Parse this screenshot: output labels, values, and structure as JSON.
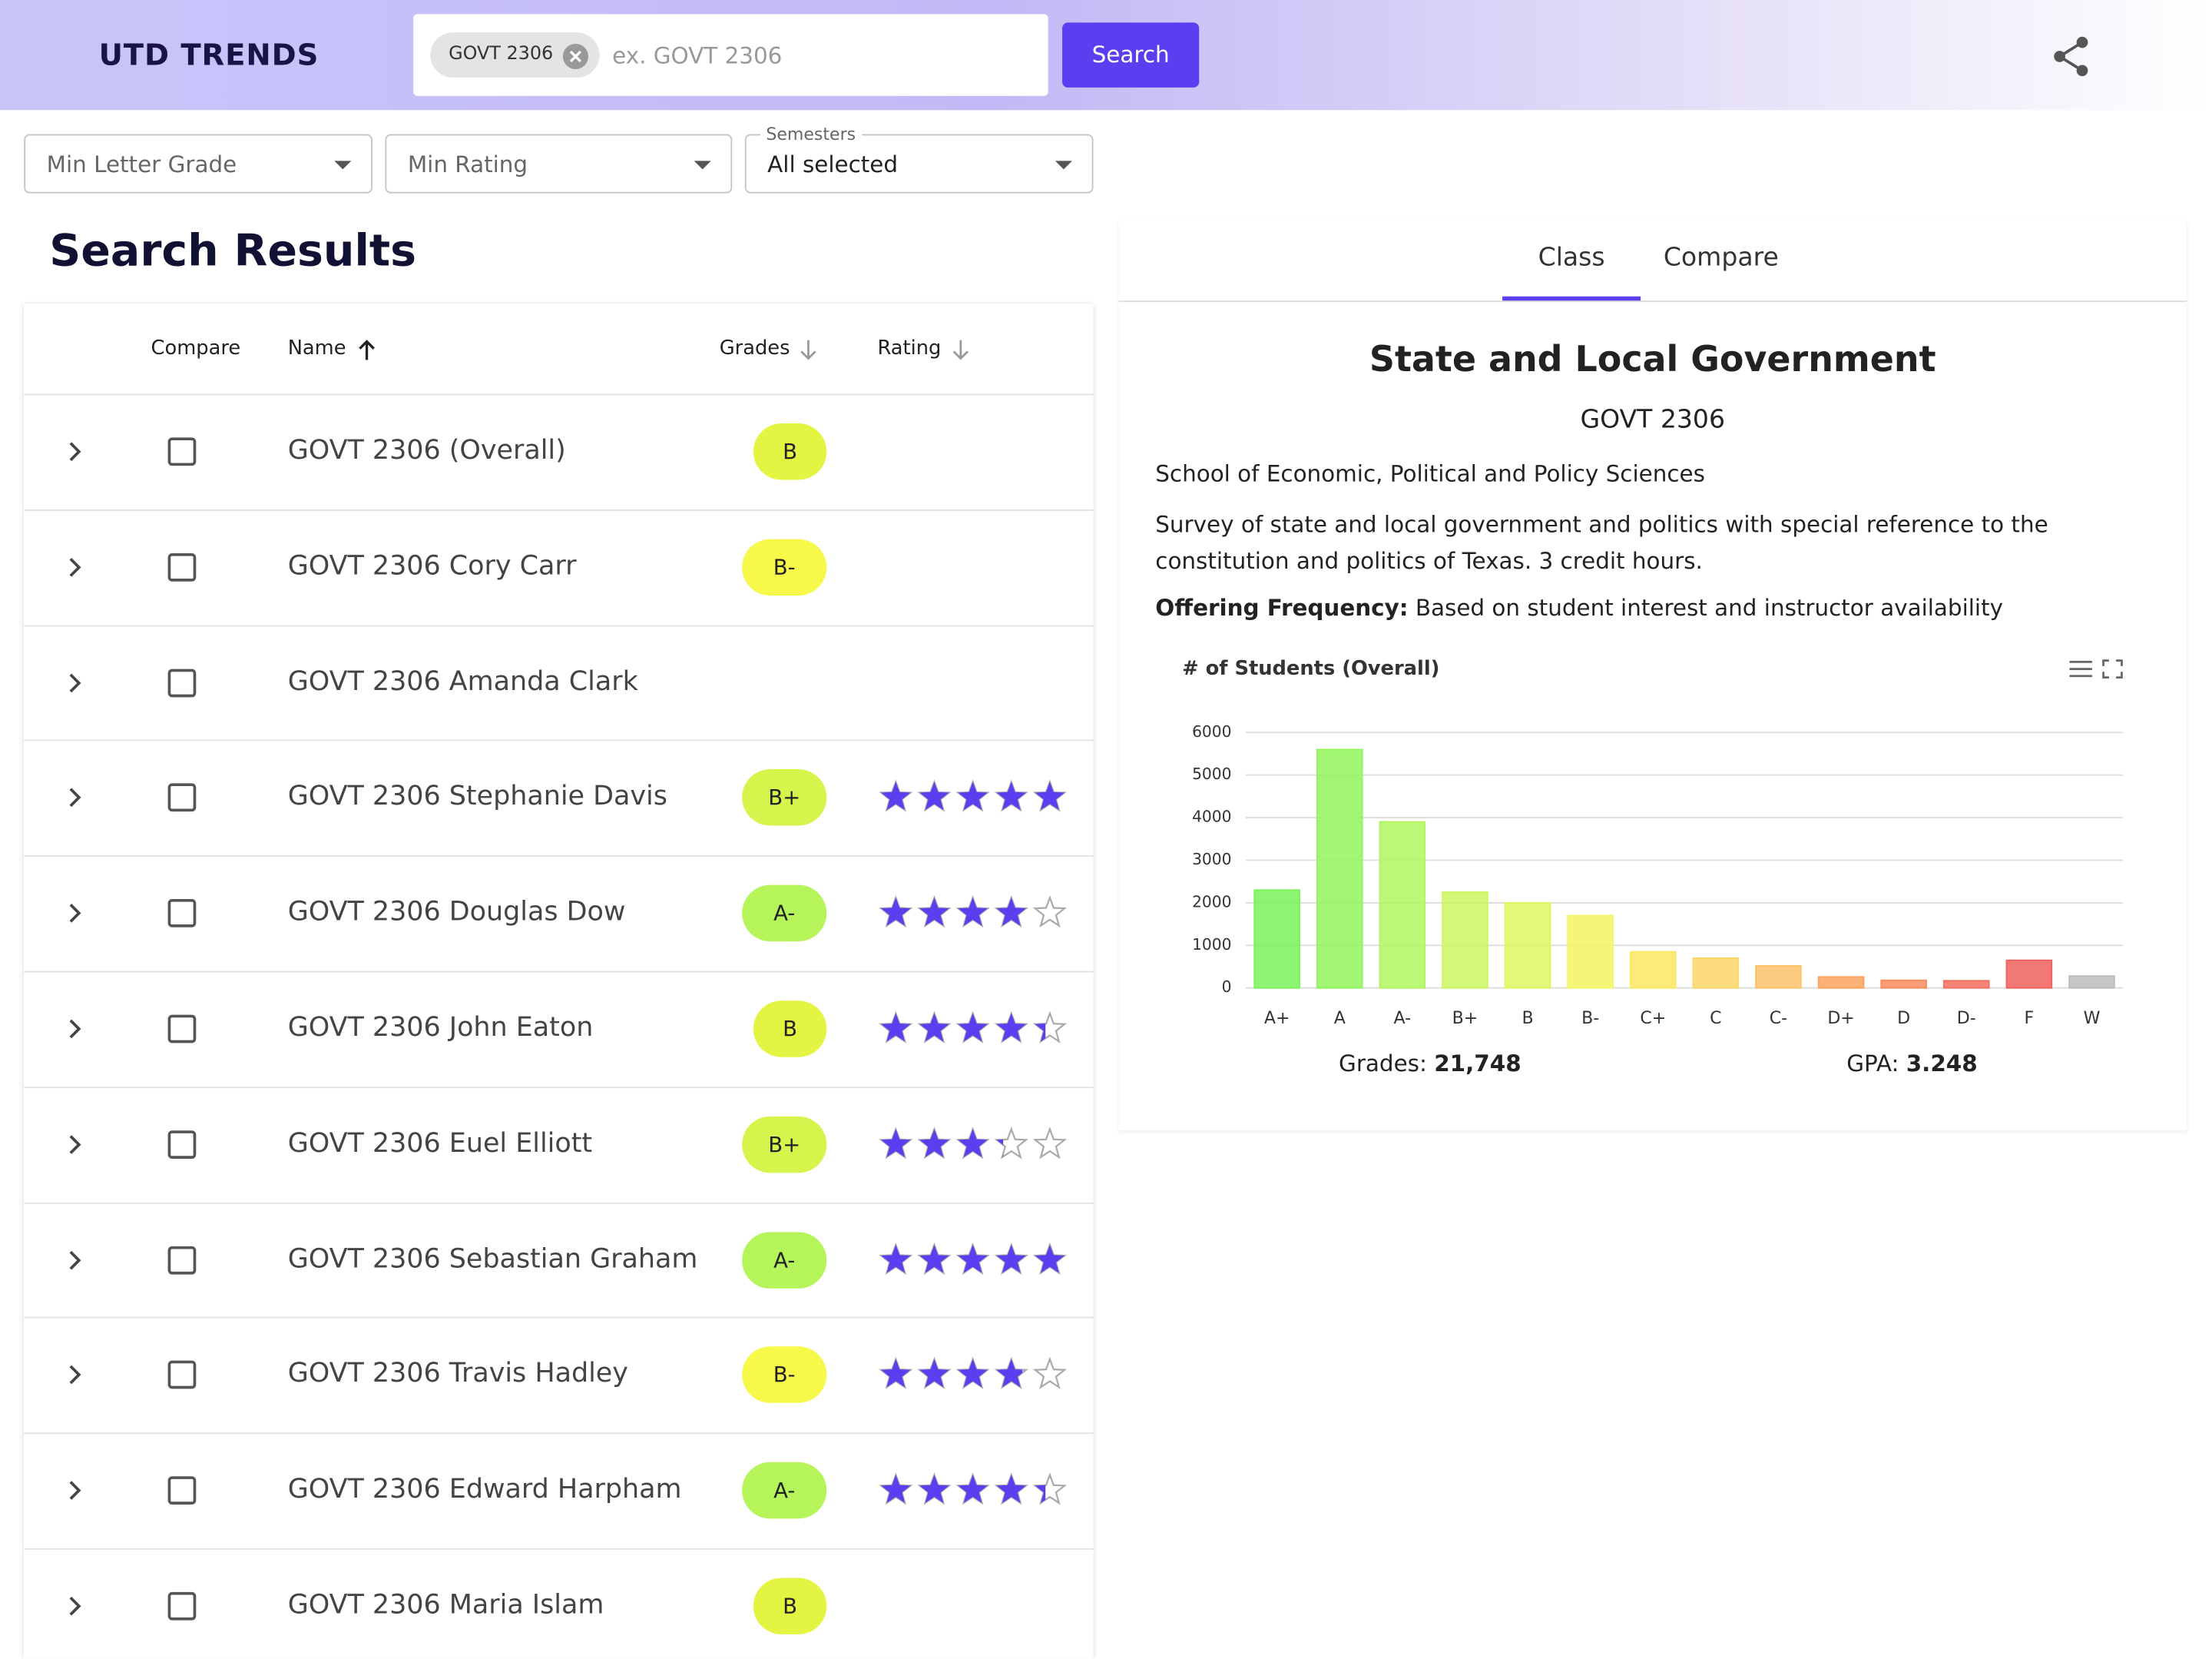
{
  "header": {
    "title": "UTD TRENDS",
    "chip": "GOVT 2306",
    "placeholder": "ex. GOVT 2306",
    "button": "Search"
  },
  "filters": {
    "min_grade": "Min Letter Grade",
    "min_rating": "Min Rating",
    "semesters_label": "Semesters",
    "semesters_value": "All selected"
  },
  "results": {
    "title": "Search Results",
    "columns": [
      "Compare",
      "Name",
      "Grades",
      "Rating"
    ],
    "rows": [
      {
        "name": "GOVT 2306 (Overall)",
        "grade": "B",
        "color": "#e3f542",
        "rating": null
      },
      {
        "name": "GOVT 2306 Cory Carr",
        "grade": "B-",
        "color": "#f6f84a",
        "rating": null
      },
      {
        "name": "GOVT 2306 Amanda Clark",
        "grade": null,
        "color": null,
        "rating": null
      },
      {
        "name": "GOVT 2306 Stephanie Davis",
        "grade": "B+",
        "color": "#d6f54c",
        "rating": 5
      },
      {
        "name": "GOVT 2306 Douglas Dow",
        "grade": "A-",
        "color": "#b6f55a",
        "rating": 4
      },
      {
        "name": "GOVT 2306 John Eaton",
        "grade": "B",
        "color": "#e3f542",
        "rating": 4.4
      },
      {
        "name": "GOVT 2306 Euel Elliott",
        "grade": "B+",
        "color": "#d6f54c",
        "rating": 3.3
      },
      {
        "name": "GOVT 2306 Sebastian Graham",
        "grade": "A-",
        "color": "#b6f55a",
        "rating": 5
      },
      {
        "name": "GOVT 2306 Travis Hadley",
        "grade": "B-",
        "color": "#f6f84a",
        "rating": 3.8
      },
      {
        "name": "GOVT 2306 Edward Harpham",
        "grade": "A-",
        "color": "#b6f55a",
        "rating": 4.4
      },
      {
        "name": "GOVT 2306 Maria Islam",
        "grade": "B",
        "color": "#e3f542",
        "rating": null
      }
    ]
  },
  "detail": {
    "tabs": [
      "Class",
      "Compare"
    ],
    "title": "State and Local Government",
    "code": "GOVT 2306",
    "school": "School of Economic, Political and Policy Sciences",
    "description": "Survey of state and local government and politics with special reference to the constitution and politics of Texas. 3 credit hours.",
    "frequency_label": "Offering Frequency:",
    "frequency": "Based on student interest and instructor availability",
    "grades_label": "Grades:",
    "grades": "21,748",
    "gpa_label": "GPA:",
    "gpa": "3.248"
  },
  "chart_data": {
    "type": "bar",
    "title": "# of Students (Overall)",
    "categories": [
      "A+",
      "A",
      "A-",
      "B+",
      "B",
      "B-",
      "C+",
      "C",
      "C-",
      "D+",
      "D",
      "D-",
      "F",
      "W"
    ],
    "values": [
      2300,
      5600,
      3900,
      2250,
      2000,
      1700,
      850,
      700,
      520,
      260,
      180,
      170,
      650,
      280
    ],
    "colors": [
      "#79f25a",
      "#92f45a",
      "#b2f65f",
      "#cbf65f",
      "#e0f65f",
      "#f3f562",
      "#fbe760",
      "#fdd666",
      "#fdc268",
      "#fba35e",
      "#f98c5e",
      "#f56f5e",
      "#f0605d",
      "#bcbcbc"
    ],
    "ylim": [
      0,
      6000
    ],
    "yticks": [
      0,
      1000,
      2000,
      3000,
      4000,
      5000,
      6000
    ],
    "grid": true
  }
}
